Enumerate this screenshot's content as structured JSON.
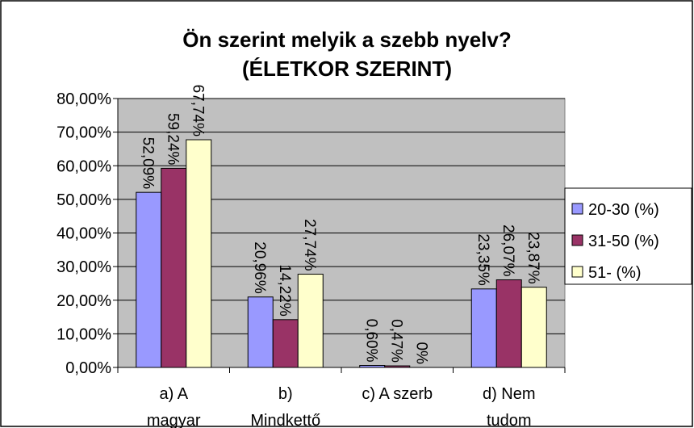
{
  "chart_data": {
    "type": "bar",
    "title": "Ön szerint melyik a szebb nyelv?\n(ÉLETKOR SZERINT)",
    "categories": [
      "a) A\nmagyar",
      "b)\nMindkettő",
      "c) A szerb",
      "d) Nem\ntudom"
    ],
    "series": [
      {
        "name": "20-30 (%)",
        "color": "#9999ff",
        "values": [
          52.09,
          20.96,
          0.6,
          23.35
        ],
        "value_labels": [
          "52,09%",
          "20,96%",
          "0,60%",
          "23,35%"
        ]
      },
      {
        "name": "31-50 (%)",
        "color": "#993366",
        "values": [
          59.24,
          14.22,
          0.47,
          26.07
        ],
        "value_labels": [
          "59,24%",
          "14,22%",
          "0,47%",
          "26,07%"
        ]
      },
      {
        "name": "51- (%)",
        "color": "#ffffcc",
        "values": [
          67.74,
          27.74,
          0,
          23.87
        ],
        "value_labels": [
          "67,74%",
          "27,74%",
          "0%",
          "23,87%"
        ]
      }
    ],
    "ylim": [
      0,
      80
    ],
    "yticks": [
      {
        "value": 0,
        "label": "0,00%"
      },
      {
        "value": 10,
        "label": "10,00%"
      },
      {
        "value": 20,
        "label": "20,00%"
      },
      {
        "value": 30,
        "label": "30,00%"
      },
      {
        "value": 40,
        "label": "40,00%"
      },
      {
        "value": 50,
        "label": "50,00%"
      },
      {
        "value": 60,
        "label": "60,00%"
      },
      {
        "value": 70,
        "label": "70,00%"
      },
      {
        "value": 80,
        "label": "80,00%"
      }
    ],
    "grid": true,
    "legend": "right",
    "plot_background": "#c0c0c0"
  }
}
